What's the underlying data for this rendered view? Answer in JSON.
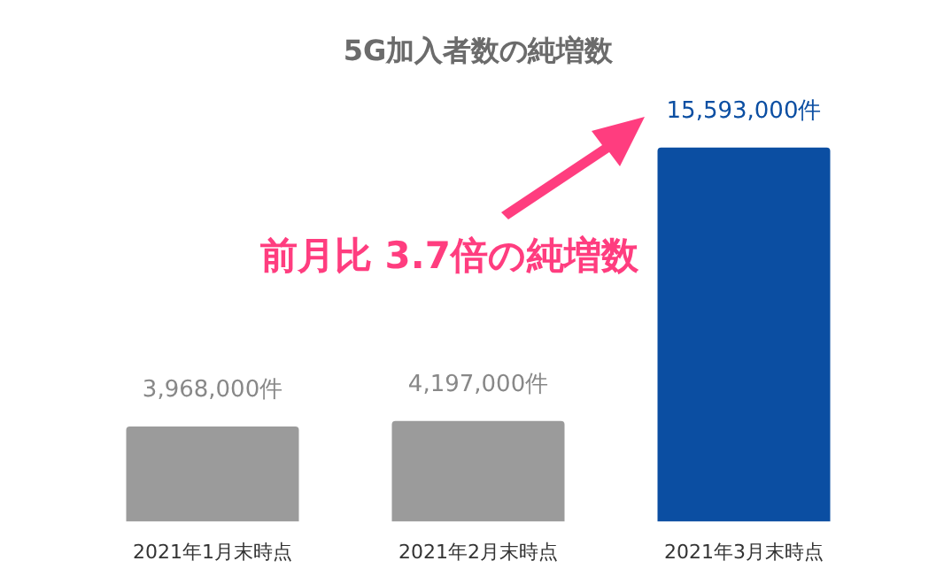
{
  "chart_data": {
    "type": "bar",
    "title": "5G加入者数の純増数",
    "categories": [
      "2021年1月末時点",
      "2021年2月末時点",
      "2021年3月末時点"
    ],
    "values": [
      3968000,
      4197000,
      15593000
    ],
    "colors": [
      "#9b9b9b",
      "#9b9b9b",
      "#0b4ea2"
    ],
    "value_labels": [
      "3,968,000件",
      "4,197,000件",
      "15,593,000件"
    ],
    "annotations": [
      "前月比 3.7倍の純増数"
    ],
    "grid": false,
    "legend": false
  }
}
